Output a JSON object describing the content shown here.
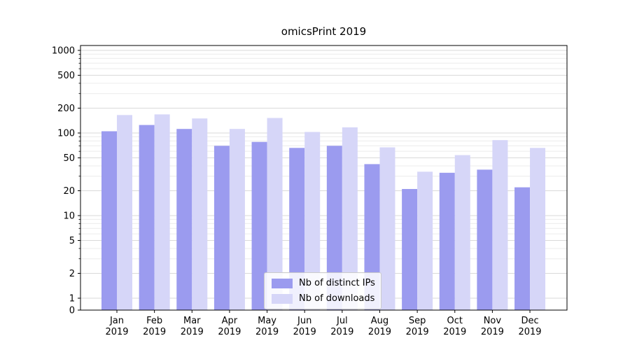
{
  "chart_data": {
    "type": "bar",
    "title": "omicsPrint 2019",
    "xlabel": "",
    "ylabel": "",
    "yscale": "symlog",
    "grid": true,
    "legend_position": "lower center",
    "ylim": [
      0,
      1150
    ],
    "yticks": [
      0,
      1,
      2,
      5,
      10,
      20,
      50,
      100,
      200,
      500,
      1000
    ],
    "categories": [
      "Jan 2019",
      "Feb 2019",
      "Mar 2019",
      "Apr 2019",
      "May 2019",
      "Jun 2019",
      "Jul 2019",
      "Aug 2019",
      "Sep 2019",
      "Oct 2019",
      "Nov 2019",
      "Dec 2019"
    ],
    "series": [
      {
        "name": "Nb of distinct IPs",
        "color": "#9b9bef",
        "values": [
          105,
          125,
          112,
          70,
          78,
          66,
          70,
          42,
          21,
          33,
          36,
          22
        ]
      },
      {
        "name": "Nb of downloads",
        "color": "#d6d6f8",
        "values": [
          165,
          168,
          150,
          112,
          152,
          103,
          117,
          67,
          34,
          54,
          82,
          66
        ]
      }
    ]
  }
}
